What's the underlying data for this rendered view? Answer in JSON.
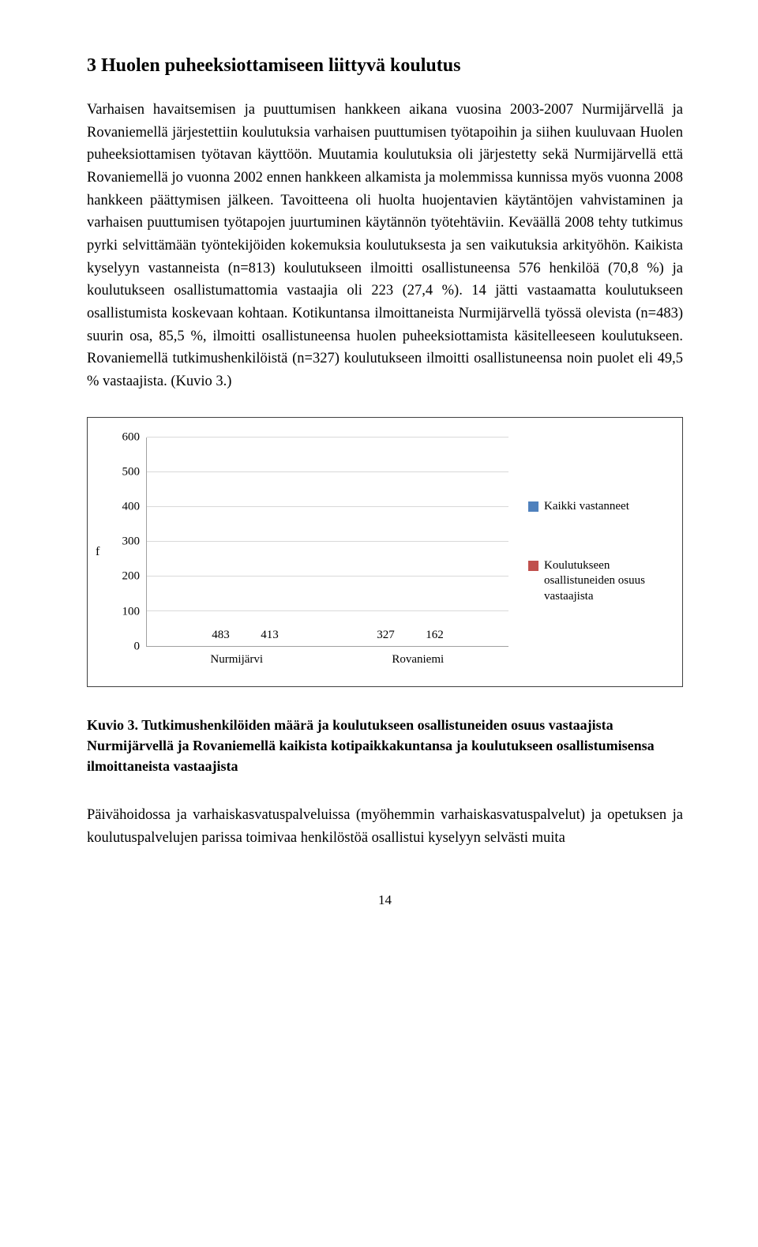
{
  "heading": "3  Huolen puheeksiottamiseen liittyvä koulutus",
  "body": "Varhaisen havaitsemisen ja puuttumisen hankkeen aikana vuosina 2003-2007 Nurmijärvellä ja Rovaniemellä järjestettiin koulutuksia varhaisen puuttumisen työtapoihin ja siihen kuuluvaan Huolen puheeksiottamisen työtavan käyttöön. Muutamia koulutuksia oli järjestetty sekä Nurmijärvellä että Rovaniemellä jo vuonna 2002 ennen hankkeen alkamista ja molemmissa kunnissa myös vuonna 2008 hankkeen päättymisen jälkeen. Tavoitteena oli huolta huojentavien käytäntöjen vahvistaminen ja varhaisen puuttumisen työtapojen juurtuminen käytännön työtehtäviin. Keväällä 2008 tehty tutkimus pyrki selvittämään työntekijöiden kokemuksia koulutuksesta ja sen vaikutuksia arkityöhön. Kaikista kyselyyn vastanneista (n=813) koulutukseen ilmoitti osallistuneensa 576 henkilöä (70,8 %) ja koulutukseen osallistumattomia vastaajia oli 223 (27,4 %). 14 jätti vastaamatta koulutukseen osallistumista koskevaan kohtaan. Kotikuntansa ilmoittaneista Nurmijärvellä työssä olevista (n=483) suurin osa, 85,5 %, ilmoitti osallistuneensa huolen puheeksiottamista käsitelleeseen koulutukseen. Rovaniemellä tutkimushenkilöistä (n=327) koulutukseen ilmoitti osallistuneensa noin puolet eli 49,5 % vastaajista. (Kuvio 3.)",
  "chart": {
    "type": "bar",
    "y_label": "f",
    "y_max": 600,
    "y_ticks": [
      0,
      100,
      200,
      300,
      400,
      500,
      600
    ],
    "categories": [
      "Nurmijärvi",
      "Rovaniemi"
    ],
    "series": [
      {
        "name": "Kaikki vastanneet",
        "color": "#4f81bd",
        "values": [
          483,
          327
        ]
      },
      {
        "name": "Koulutukseen osallistuneiden osuus vastaajista",
        "color": "#c0504d",
        "values": [
          413,
          162
        ]
      }
    ],
    "grid_color": "#d9d9d9",
    "axis_color": "#a0a0a0",
    "label_fontsize": 15
  },
  "caption_lead": "Kuvio 3. ",
  "caption_rest": "Tutkimushenkilöiden määrä ja koulutukseen osallistuneiden osuus vastaajista Nurmijärvellä ja Rovaniemellä kaikista kotipaikkakuntansa ja koulutukseen osallistumisensa ilmoittaneista vastaajista",
  "trailing": "Päivähoidossa ja varhaiskasvatuspalveluissa (myöhemmin varhaiskasvatuspalvelut) ja opetuksen ja koulutuspalvelujen parissa toimivaa henkilöstöä osallistui kyselyyn selvästi muita",
  "page_number": "14"
}
